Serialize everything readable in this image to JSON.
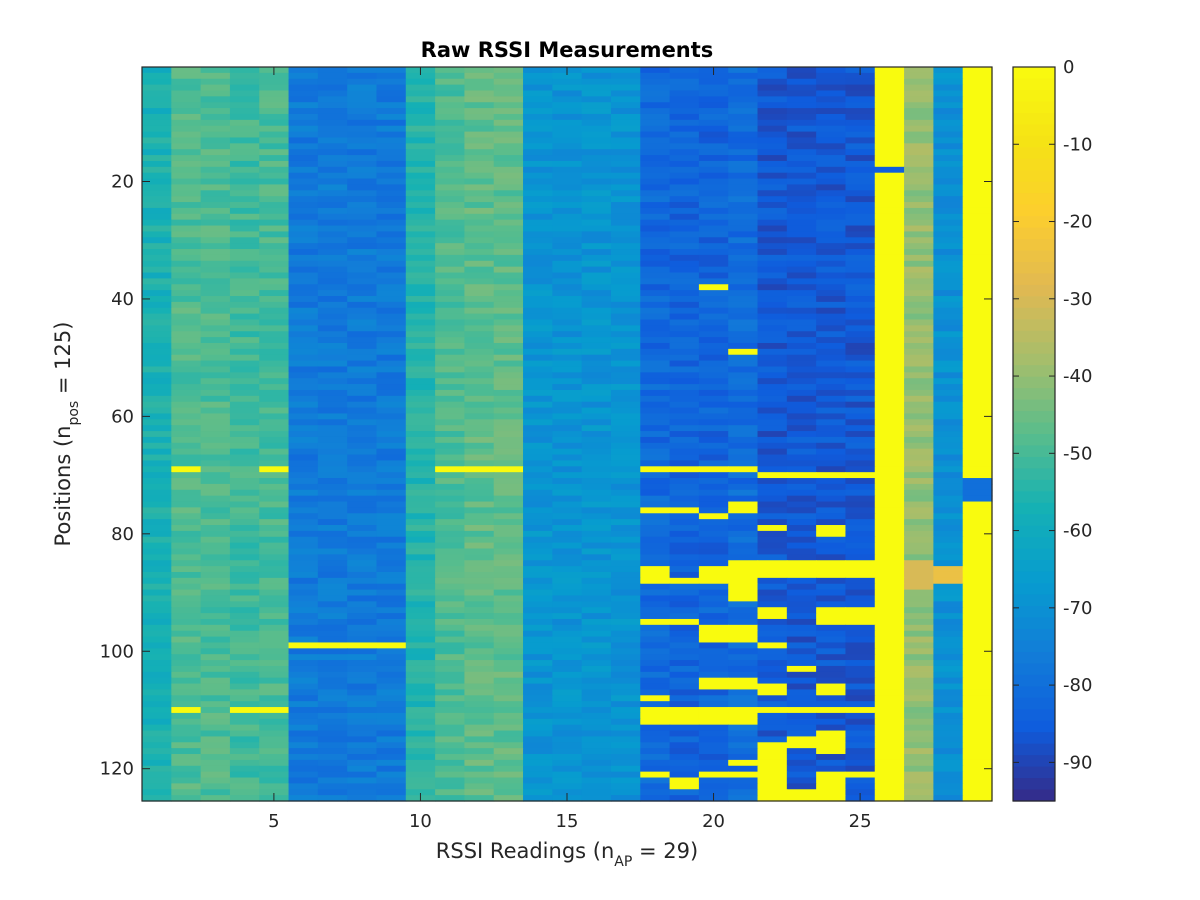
{
  "chart_data": {
    "type": "heatmap",
    "title": "Raw RSSI Measurements",
    "xlabel": {
      "main": "RSSI Readings (n",
      "sub": "AP",
      "tail": " = 29)"
    },
    "ylabel": {
      "main": "Positions (n",
      "sub": "pos",
      "tail": " = 125)"
    },
    "n_columns": 29,
    "n_rows": 125,
    "x_ticks": [
      5,
      10,
      15,
      20,
      25
    ],
    "y_ticks": [
      20,
      40,
      60,
      80,
      100,
      120
    ],
    "colorbar": {
      "range": [
        -95,
        0
      ],
      "ticks": [
        0,
        -10,
        -20,
        -30,
        -40,
        -50,
        -60,
        -70,
        -80,
        -90
      ],
      "colormap": "parula"
    },
    "column_baseline_dbm": [
      -57,
      -49,
      -49,
      -51,
      -50,
      -77,
      -77,
      -77,
      -77,
      -55,
      -49,
      -47,
      -47,
      -69,
      -69,
      -69,
      -69,
      -82,
      -83,
      -83,
      -81,
      -86,
      -86,
      -86,
      -86,
      0,
      -40,
      -70,
      0
    ],
    "saturated_cells": [
      {
        "column": 26,
        "rows": "1-17, 19-125",
        "value": 0
      },
      {
        "column": 29,
        "rows": "1-70, 75-125",
        "value": 0
      },
      {
        "column": 2,
        "rows": [
          69,
          110
        ],
        "value": 0
      },
      {
        "column": 5,
        "rows": [
          69,
          110
        ],
        "value": 0
      },
      {
        "column": 4,
        "rows": [
          110
        ],
        "value": 0
      },
      {
        "column": 6,
        "rows": [
          99
        ],
        "value": 0
      },
      {
        "column": 7,
        "rows": [
          99
        ],
        "value": 0
      },
      {
        "column": 8,
        "rows": [
          99
        ],
        "value": 0
      },
      {
        "column": 9,
        "rows": [
          99
        ],
        "value": 0
      },
      {
        "column": 11,
        "rows": [
          69
        ],
        "value": 0
      },
      {
        "column": 12,
        "rows": [
          69
        ],
        "value": 0
      },
      {
        "column": 13,
        "rows": [
          69
        ],
        "value": 0
      },
      {
        "column": 18,
        "rows": [
          69,
          76,
          86,
          87,
          88,
          95,
          108,
          110,
          111,
          112,
          121
        ],
        "value": 0
      },
      {
        "column": 19,
        "rows": [
          69,
          76,
          88,
          95,
          110,
          111,
          112,
          122,
          123
        ],
        "value": 0
      },
      {
        "column": 20,
        "rows": [
          38,
          69,
          77,
          86,
          87,
          88,
          96,
          97,
          98,
          105,
          106,
          110,
          111,
          112,
          121
        ],
        "value": 0
      },
      {
        "column": 21,
        "rows": [
          49,
          69,
          75,
          76,
          85,
          86,
          87,
          88,
          89,
          90,
          91,
          96,
          97,
          98,
          105,
          106,
          110,
          111,
          112,
          119,
          121
        ],
        "value": 0
      },
      {
        "column": 22,
        "rows": [
          70,
          79,
          85,
          86,
          87,
          93,
          94,
          99,
          106,
          107,
          110,
          116,
          117,
          118,
          119,
          120,
          121,
          122,
          123,
          124,
          125
        ],
        "value": 0
      },
      {
        "column": 23,
        "rows": [
          70,
          85,
          86,
          87,
          103,
          110,
          115,
          116,
          124,
          125
        ],
        "value": 0
      },
      {
        "column": 24,
        "rows": [
          70,
          79,
          80,
          85,
          86,
          87,
          93,
          94,
          95,
          106,
          107,
          110,
          114,
          115,
          116,
          117,
          121,
          122,
          123,
          124,
          125
        ],
        "value": 0
      },
      {
        "column": 25,
        "rows": [
          70,
          85,
          86,
          87,
          93,
          94,
          95,
          110,
          121
        ],
        "value": 0
      }
    ],
    "anomalies": [
      {
        "column": 26,
        "row": 18,
        "value": -85
      },
      {
        "column": 29,
        "rows": "71-74",
        "value": -80
      },
      {
        "column": 27,
        "rows": "85-89",
        "value": -30
      },
      {
        "column": 28,
        "rows": "86-88",
        "value": -25
      }
    ]
  }
}
